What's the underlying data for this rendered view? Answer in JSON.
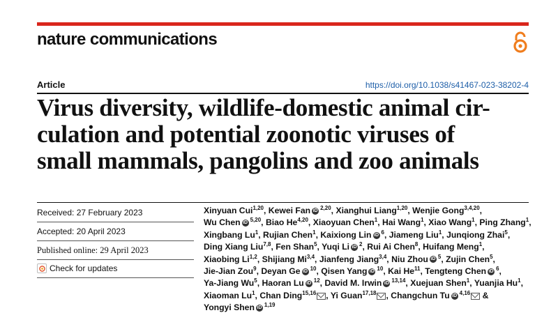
{
  "header": {
    "journal": "nature communications",
    "article_label": "Article",
    "doi": "https://doi.org/10.1038/s41467-023-38202-4",
    "accent_color": "#d9261c",
    "oa_icon": "open-access-icon"
  },
  "title_text": "Virus diversity, wildlife-domestic animal cir-\nculation and potential zoonotic viruses of\nsmall mammals, pangolins and zoo animals",
  "meta": {
    "received": "Received: 27 February 2023",
    "accepted": "Accepted: 20 April 2023",
    "published": "Published online: 29 April 2023",
    "check_updates": "Check for updates"
  },
  "authors": [
    [
      [
        "Xinyuan Cui",
        "1,20",
        false,
        false
      ],
      [
        "Kewei Fan",
        "2,20",
        true,
        false
      ],
      [
        "Xianghui Liang",
        "1,20",
        false,
        false
      ],
      [
        "Wenjie Gong",
        "3,4,20",
        false,
        false
      ]
    ],
    [
      [
        "Wu Chen",
        "5,20",
        true,
        false
      ],
      [
        "Biao He",
        "4,20",
        false,
        false
      ],
      [
        "Xiaoyuan Chen",
        "1",
        false,
        false
      ],
      [
        "Hai Wang",
        "1",
        false,
        false
      ],
      [
        "Xiao Wang",
        "1",
        false,
        false
      ],
      [
        "Ping Zhang",
        "1",
        false,
        false
      ]
    ],
    [
      [
        "Xingbang Lu",
        "1",
        false,
        false
      ],
      [
        "Rujian Chen",
        "1",
        false,
        false
      ],
      [
        "Kaixiong Lin",
        "6",
        true,
        false
      ],
      [
        "Jiameng Liu",
        "1",
        false,
        false
      ],
      [
        "Junqiong Zhai",
        "5",
        false,
        false
      ]
    ],
    [
      [
        "Ding Xiang Liu",
        "7,8",
        false,
        false
      ],
      [
        "Fen Shan",
        "5",
        false,
        false
      ],
      [
        "Yuqi Li",
        "2",
        true,
        false
      ],
      [
        "Rui Ai Chen",
        "8",
        false,
        false
      ],
      [
        "Huifang Meng",
        "1",
        false,
        false
      ]
    ],
    [
      [
        "Xiaobing Li",
        "1,2",
        false,
        false
      ],
      [
        "Shijiang Mi",
        "3,4",
        false,
        false
      ],
      [
        "Jianfeng Jiang",
        "3,4",
        false,
        false
      ],
      [
        "Niu Zhou",
        "5",
        true,
        false
      ],
      [
        "Zujin Chen",
        "5",
        false,
        false
      ]
    ],
    [
      [
        "Jie-Jian Zou",
        "9",
        false,
        false
      ],
      [
        "Deyan Ge",
        "10",
        true,
        false
      ],
      [
        "Qisen Yang",
        "10",
        true,
        false
      ],
      [
        "Kai He",
        "11",
        false,
        false
      ],
      [
        "Tengteng Chen",
        "6",
        true,
        false
      ]
    ],
    [
      [
        "Ya-Jiang Wu",
        "5",
        false,
        false
      ],
      [
        "Haoran Lu",
        "12",
        true,
        false
      ],
      [
        "David M. Irwin",
        "13,14",
        true,
        false
      ],
      [
        "Xuejuan Shen",
        "1",
        false,
        false
      ],
      [
        "Yuanjia Hu",
        "1",
        false,
        false
      ]
    ],
    [
      [
        "Xiaoman Lu",
        "1",
        false,
        false
      ],
      [
        "Chan Ding",
        "15,16",
        false,
        true
      ],
      [
        "Yi Guan",
        "17,18",
        false,
        true
      ],
      [
        "Changchun Tu",
        "4,16",
        true,
        true
      ]
    ],
    [
      [
        "Yongyi Shen",
        "1,19",
        true,
        false
      ]
    ]
  ]
}
